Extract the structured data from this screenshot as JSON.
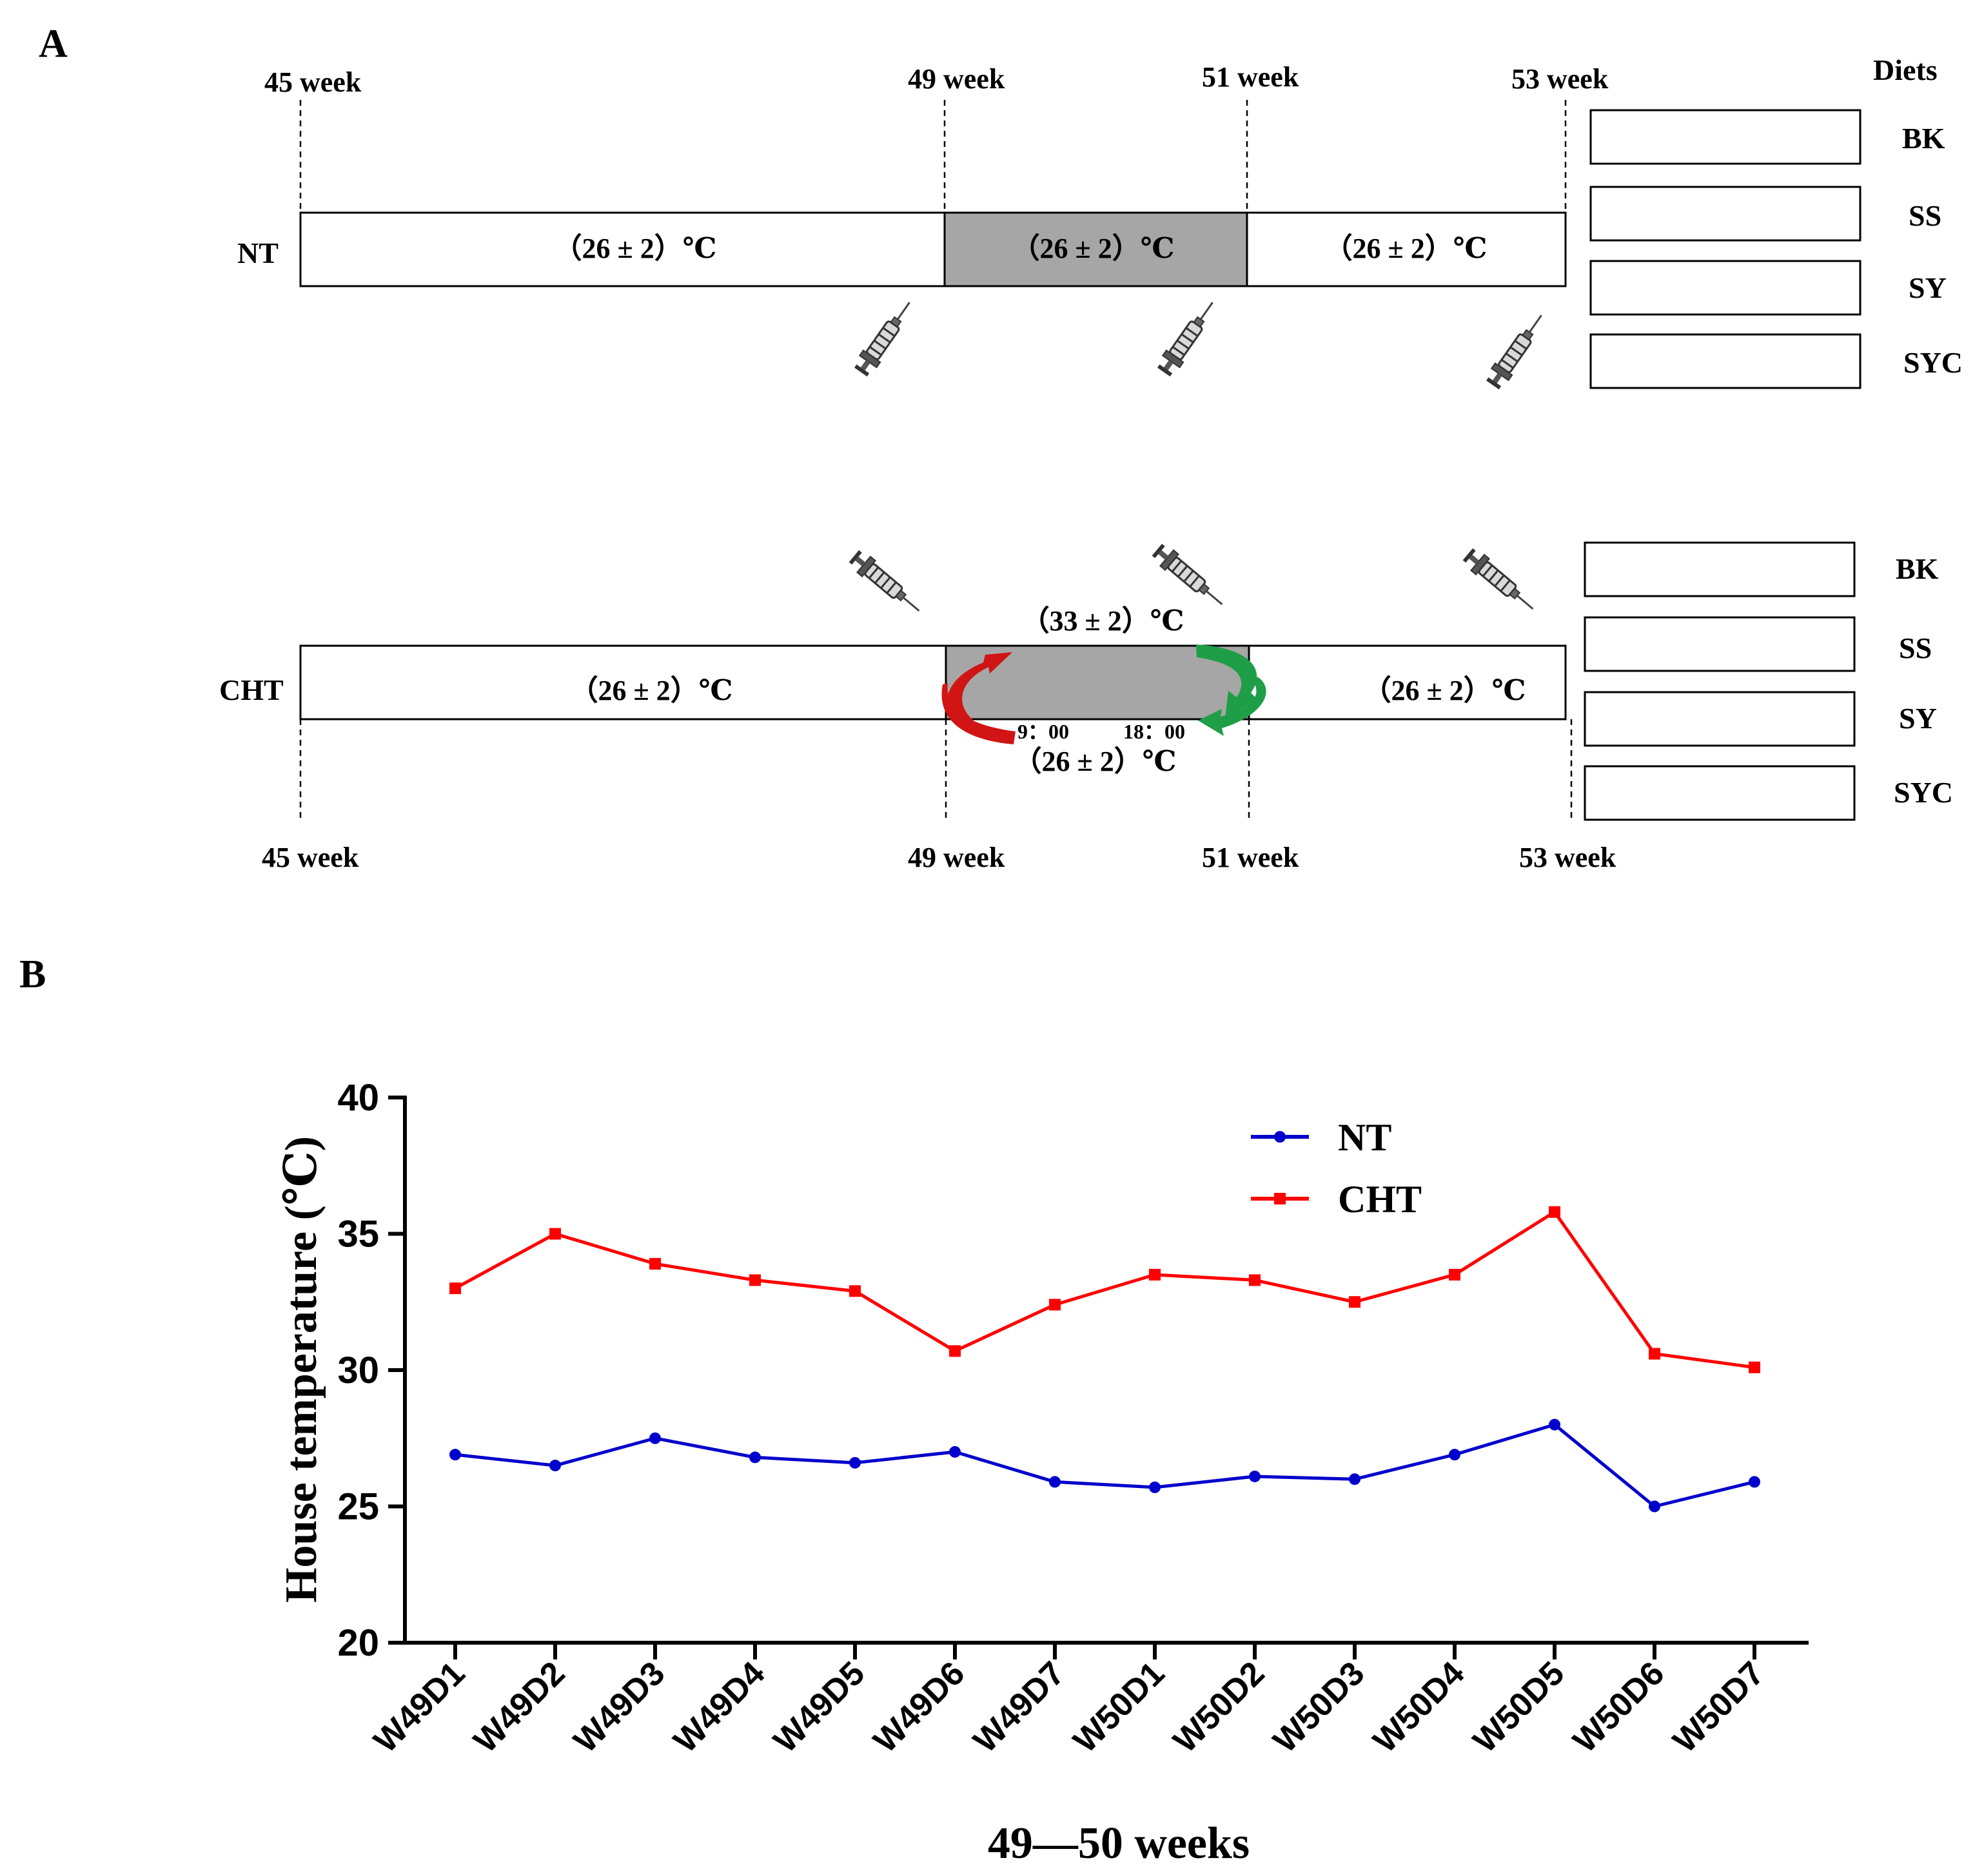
{
  "panel_a": {
    "letter": "A",
    "diets_header": "Diets",
    "nt": {
      "label": "NT",
      "weeks": [
        "45 week",
        "49 week",
        "51 week",
        "53 week"
      ],
      "segments": [
        "（26 ± 2）℃",
        "（26 ± 2）℃",
        "（26 ± 2）℃"
      ]
    },
    "cht": {
      "label": "CHT",
      "weeks": [
        "45 week",
        "49 week",
        "51 week",
        "53 week"
      ],
      "segments": [
        "（26 ± 2）℃",
        "（26 ± 2）℃"
      ],
      "high_temp": "（33 ± 2）℃",
      "low_temp": "（26 ± 2）℃",
      "time_on": "9：00",
      "time_off": "18：00"
    },
    "diets": [
      "BK",
      "SS",
      "SY",
      "SYC"
    ],
    "icons": [
      "syringe-icon",
      "rotation-arrow-red-icon",
      "rotation-arrow-green-icon"
    ],
    "colors": {
      "shaded": "#a6a6a6",
      "arrow_red": "#d11414",
      "arrow_green": "#1e9e47"
    }
  },
  "panel_b": {
    "letter": "B"
  },
  "chart_data": {
    "type": "line",
    "categories": [
      "W49D1",
      "W49D2",
      "W49D3",
      "W49D4",
      "W49D5",
      "W49D6",
      "W49D7",
      "W50D1",
      "W50D2",
      "W50D3",
      "W50D4",
      "W50D5",
      "W50D6",
      "W50D7"
    ],
    "series": [
      {
        "name": "NT",
        "color": "#0000cc",
        "marker": "circle",
        "values": [
          26.9,
          26.5,
          27.5,
          26.8,
          26.6,
          27.0,
          25.9,
          25.7,
          26.1,
          26.0,
          26.9,
          28.0,
          25.0,
          25.9
        ]
      },
      {
        "name": "CHT",
        "color": "#ff0000",
        "marker": "square",
        "values": [
          33.0,
          35.0,
          33.9,
          33.3,
          32.9,
          30.7,
          32.4,
          33.5,
          33.3,
          32.5,
          33.5,
          35.8,
          30.6,
          30.1
        ]
      }
    ],
    "xlabel": "49—50 weeks",
    "ylabel": "House temperature (℃)",
    "ylim": [
      20,
      40
    ],
    "yticks": [
      "20",
      "25",
      "30",
      "35",
      "40"
    ],
    "legend_position": "top-right",
    "grid": false
  }
}
